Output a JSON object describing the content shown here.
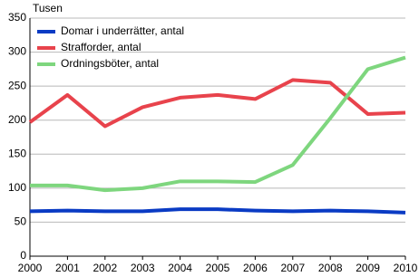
{
  "chart_data": {
    "type": "line",
    "y_unit_label": "Tusen",
    "categories": [
      "2000",
      "2001",
      "2002",
      "2003",
      "2004",
      "2005",
      "2006",
      "2007",
      "2008",
      "2009",
      "2010"
    ],
    "series": [
      {
        "name": "Domar i underrätter, antal",
        "color": "#0a3bc4",
        "values": [
          66,
          67,
          66,
          66,
          69,
          69,
          67,
          66,
          67,
          66,
          64
        ]
      },
      {
        "name": "Strafforder, antal",
        "color": "#e8434c",
        "values": [
          197,
          237,
          191,
          219,
          233,
          237,
          231,
          259,
          255,
          209,
          211
        ]
      },
      {
        "name": "Ordningsböter, antal",
        "color": "#7ed67e",
        "values": [
          104,
          104,
          97,
          100,
          110,
          110,
          109,
          134,
          203,
          275,
          292
        ]
      }
    ],
    "ylim": [
      0,
      350
    ],
    "yticks": [
      0,
      50,
      100,
      150,
      200,
      250,
      300,
      350
    ],
    "grid": true,
    "legend": "top-left"
  }
}
